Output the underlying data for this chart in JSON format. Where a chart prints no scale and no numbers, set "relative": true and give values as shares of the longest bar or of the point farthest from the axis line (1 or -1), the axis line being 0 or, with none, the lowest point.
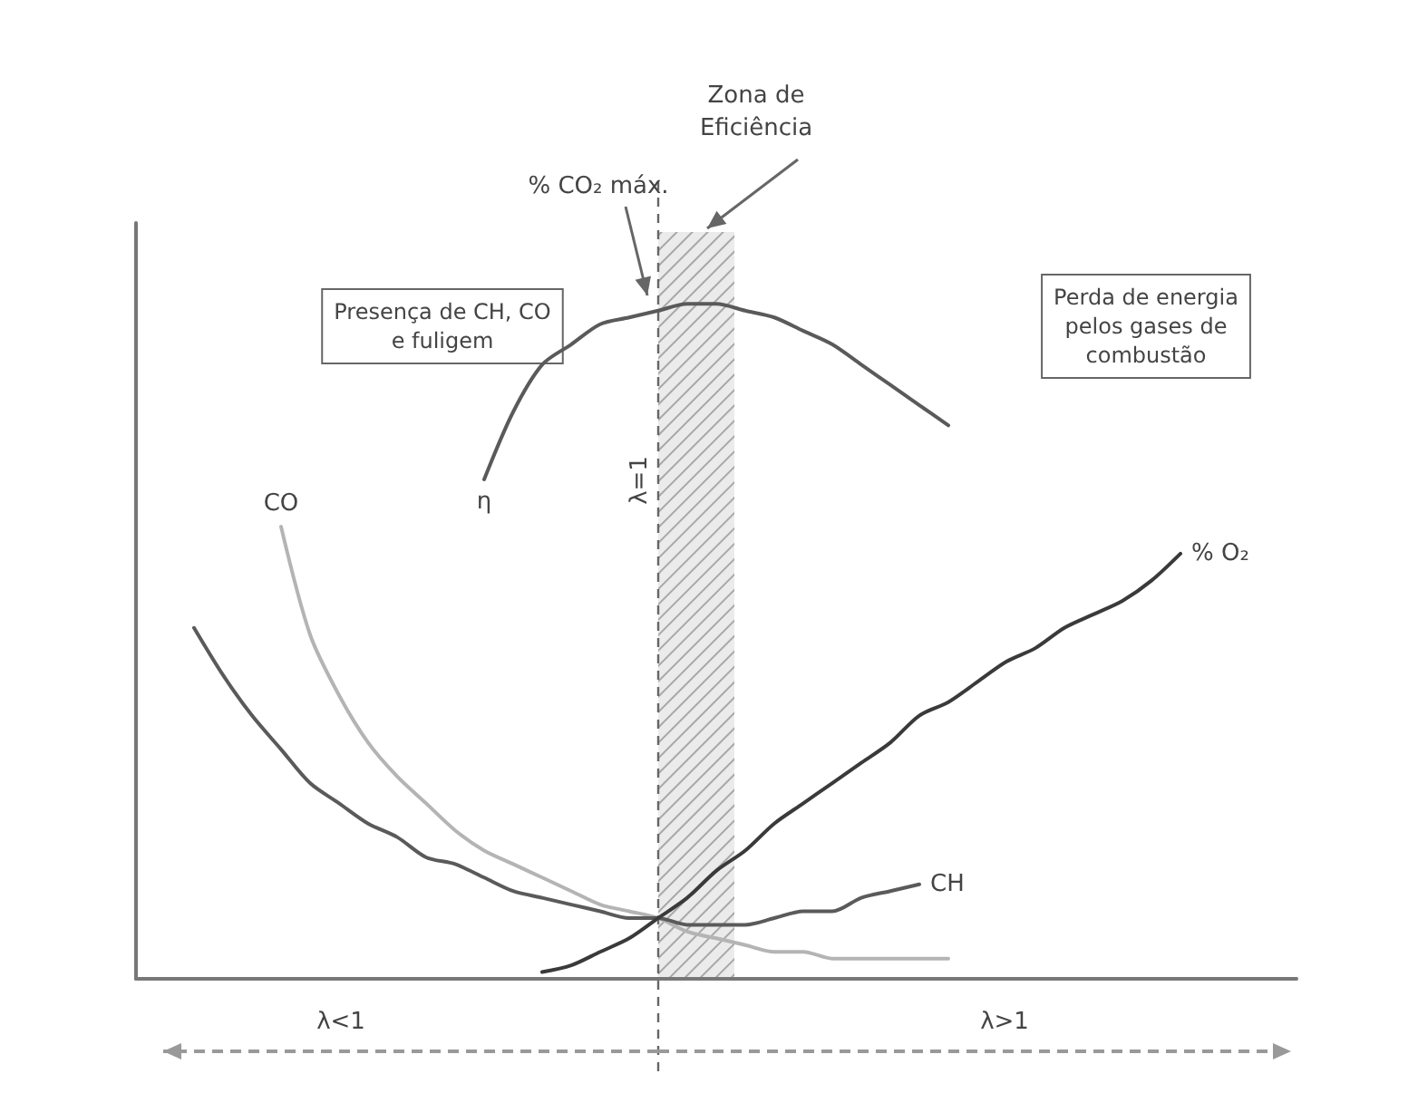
{
  "chart_data": {
    "type": "line",
    "relative": true,
    "categories": [
      null,
      null,
      null,
      null,
      null,
      null,
      null,
      null,
      null,
      null,
      null,
      null,
      null,
      null,
      null,
      null,
      null,
      null,
      null,
      null,
      null,
      null,
      null,
      null,
      null,
      null,
      null,
      null,
      null,
      null,
      null,
      null,
      null,
      null,
      null,
      null,
      null,
      null,
      null,
      null,
      null
    ],
    "series": [
      {
        "name": "CO",
        "color": "#b4b4b4",
        "values": [
          null,
          null,
          null,
          null,
          null,
          0.67,
          0.51,
          0.42,
          0.35,
          0.3,
          0.26,
          0.22,
          0.19,
          0.17,
          0.15,
          0.13,
          0.11,
          0.1,
          0.09,
          0.07,
          0.06,
          0.05,
          0.04,
          0.04,
          0.03,
          0.03,
          0.03,
          0.03,
          0.03,
          null,
          null,
          null,
          null,
          null,
          null,
          null,
          null,
          null,
          null,
          null,
          null
        ]
      },
      {
        "name": "η",
        "color": "#5a5a5a",
        "values": [
          null,
          null,
          null,
          null,
          null,
          null,
          null,
          null,
          null,
          null,
          null,
          null,
          0.74,
          0.84,
          0.91,
          0.94,
          0.97,
          0.98,
          0.99,
          1.0,
          1.0,
          0.99,
          0.98,
          0.96,
          0.94,
          0.91,
          0.88,
          0.85,
          0.82,
          null,
          null,
          null,
          null,
          null,
          null,
          null,
          null,
          null,
          null,
          null,
          null
        ]
      },
      {
        "name": "CH",
        "color": "#5a5a5a",
        "values": [
          null,
          null,
          0.52,
          0.45,
          0.39,
          0.34,
          0.29,
          0.26,
          0.23,
          0.21,
          0.18,
          0.17,
          0.15,
          0.13,
          0.12,
          0.11,
          0.1,
          0.09,
          0.09,
          0.08,
          0.08,
          0.08,
          0.09,
          0.1,
          0.1,
          0.12,
          0.13,
          0.14,
          null,
          null,
          null,
          null,
          null,
          null,
          null,
          null,
          null,
          null,
          null,
          null,
          null
        ]
      },
      {
        "name": "% O₂",
        "color": "#3a3a3a",
        "values": [
          null,
          null,
          null,
          null,
          null,
          null,
          null,
          null,
          null,
          null,
          null,
          null,
          null,
          null,
          0.01,
          0.02,
          0.04,
          0.06,
          0.09,
          0.12,
          0.16,
          0.19,
          0.23,
          0.26,
          0.29,
          0.32,
          0.35,
          0.39,
          0.41,
          0.44,
          0.47,
          0.49,
          0.52,
          0.54,
          0.56,
          0.59,
          0.63,
          null,
          null,
          null,
          null
        ]
      }
    ],
    "annotations": [
      "% CO₂ máx.",
      "Presença de CH, CO e fuligem",
      "Perda de energia pelos gases de combustão",
      "λ<1",
      "λ>1",
      "λ=1",
      "Zona de Eficiência"
    ],
    "grid": false,
    "legend": false,
    "marker": "none",
    "line_style": "solid"
  }
}
